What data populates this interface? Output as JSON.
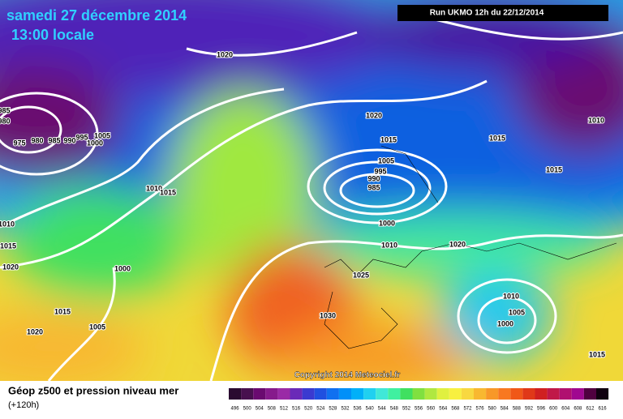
{
  "header": {
    "date": "samedi 27 décembre 2014",
    "time": "13:00 locale",
    "run": "Run UKMO 12h du 22/12/2014"
  },
  "copyright": "Copyright 2014 Meteociel.fr",
  "isobar_labels": [
    "1020",
    "985",
    "980",
    "975",
    "980",
    "985",
    "990",
    "995",
    "1005",
    "1000",
    "1010",
    "1015",
    "1010",
    "1015",
    "1020",
    "1000",
    "1015",
    "1005",
    "1020",
    "1020",
    "1015",
    "1005",
    "995",
    "990",
    "985",
    "1000",
    "1010",
    "1020",
    "1025",
    "1030",
    "1015",
    "1015",
    "1010",
    "1010",
    "1005",
    "1000",
    "1015"
  ],
  "legend": {
    "title": "Géop z500 et pression niveau mer",
    "subtitle": "(+120h)",
    "levels": [
      "496",
      "500",
      "504",
      "508",
      "512",
      "516",
      "520",
      "524",
      "528",
      "532",
      "536",
      "540",
      "544",
      "548",
      "552",
      "556",
      "560",
      "564",
      "568",
      "572",
      "576",
      "580",
      "584",
      "588",
      "592",
      "596",
      "600",
      "604",
      "608",
      "612",
      "616"
    ],
    "colors": [
      "#2a0a30",
      "#48104e",
      "#6a0a70",
      "#861a8c",
      "#9a2aa6",
      "#6a2ab8",
      "#3a3ad0",
      "#2050e0",
      "#1070f0",
      "#0090f8",
      "#00b0f8",
      "#20d0f0",
      "#40e8d8",
      "#40f0a0",
      "#40e060",
      "#80e040",
      "#b0e840",
      "#e0f040",
      "#f8f040",
      "#f8d840",
      "#f8b830",
      "#f89828",
      "#f87820",
      "#f05818",
      "#e03818",
      "#d02020",
      "#c01848",
      "#b01070",
      "#a00890",
      "#500040",
      "#100010"
    ]
  }
}
